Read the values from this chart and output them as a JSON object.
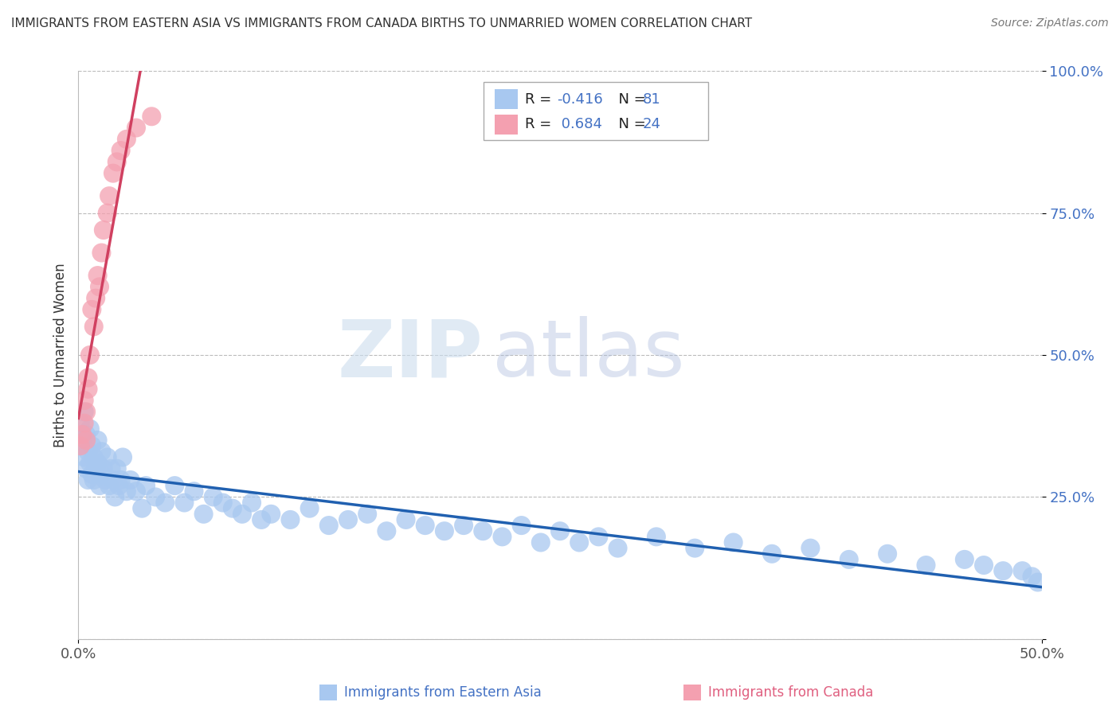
{
  "title": "IMMIGRANTS FROM EASTERN ASIA VS IMMIGRANTS FROM CANADA BIRTHS TO UNMARRIED WOMEN CORRELATION CHART",
  "source": "Source: ZipAtlas.com",
  "xlabel_blue": "Immigrants from Eastern Asia",
  "xlabel_pink": "Immigrants from Canada",
  "ylabel": "Births to Unmarried Women",
  "blue_R": -0.416,
  "blue_N": 81,
  "pink_R": 0.684,
  "pink_N": 24,
  "blue_color": "#A8C8F0",
  "pink_color": "#F4A0B0",
  "blue_line_color": "#2060B0",
  "pink_line_color": "#D04060",
  "watermark_zip": "ZIP",
  "watermark_atlas": "atlas",
  "xlim": [
    0.0,
    0.5
  ],
  "ylim": [
    0.0,
    1.0
  ],
  "legend_blue_R": "R = -0.416",
  "legend_blue_N": "N =  81",
  "legend_pink_R": "R =  0.684",
  "legend_pink_N": "N = 24",
  "blue_x": [
    0.001,
    0.002,
    0.003,
    0.003,
    0.004,
    0.004,
    0.005,
    0.005,
    0.006,
    0.006,
    0.007,
    0.007,
    0.008,
    0.008,
    0.009,
    0.01,
    0.01,
    0.011,
    0.012,
    0.012,
    0.013,
    0.014,
    0.015,
    0.016,
    0.017,
    0.018,
    0.019,
    0.02,
    0.021,
    0.022,
    0.023,
    0.025,
    0.027,
    0.03,
    0.033,
    0.035,
    0.04,
    0.045,
    0.05,
    0.055,
    0.06,
    0.065,
    0.07,
    0.075,
    0.08,
    0.085,
    0.09,
    0.095,
    0.1,
    0.11,
    0.12,
    0.13,
    0.14,
    0.15,
    0.16,
    0.17,
    0.18,
    0.19,
    0.2,
    0.21,
    0.22,
    0.23,
    0.24,
    0.25,
    0.26,
    0.27,
    0.28,
    0.3,
    0.32,
    0.34,
    0.36,
    0.38,
    0.4,
    0.42,
    0.44,
    0.46,
    0.47,
    0.48,
    0.49,
    0.495,
    0.498
  ],
  "blue_y": [
    0.38,
    0.35,
    0.32,
    0.4,
    0.3,
    0.36,
    0.33,
    0.28,
    0.31,
    0.37,
    0.29,
    0.34,
    0.32,
    0.28,
    0.3,
    0.31,
    0.35,
    0.27,
    0.29,
    0.33,
    0.3,
    0.28,
    0.32,
    0.27,
    0.3,
    0.28,
    0.25,
    0.3,
    0.27,
    0.28,
    0.32,
    0.26,
    0.28,
    0.26,
    0.23,
    0.27,
    0.25,
    0.24,
    0.27,
    0.24,
    0.26,
    0.22,
    0.25,
    0.24,
    0.23,
    0.22,
    0.24,
    0.21,
    0.22,
    0.21,
    0.23,
    0.2,
    0.21,
    0.22,
    0.19,
    0.21,
    0.2,
    0.19,
    0.2,
    0.19,
    0.18,
    0.2,
    0.17,
    0.19,
    0.17,
    0.18,
    0.16,
    0.18,
    0.16,
    0.17,
    0.15,
    0.16,
    0.14,
    0.15,
    0.13,
    0.14,
    0.13,
    0.12,
    0.12,
    0.11,
    0.1
  ],
  "pink_x": [
    0.001,
    0.002,
    0.003,
    0.003,
    0.004,
    0.004,
    0.005,
    0.005,
    0.006,
    0.007,
    0.008,
    0.009,
    0.01,
    0.011,
    0.012,
    0.013,
    0.015,
    0.016,
    0.018,
    0.02,
    0.022,
    0.025,
    0.03,
    0.038
  ],
  "pink_y": [
    0.34,
    0.36,
    0.38,
    0.42,
    0.35,
    0.4,
    0.44,
    0.46,
    0.5,
    0.58,
    0.55,
    0.6,
    0.64,
    0.62,
    0.68,
    0.72,
    0.75,
    0.78,
    0.82,
    0.84,
    0.86,
    0.88,
    0.9,
    0.92
  ]
}
